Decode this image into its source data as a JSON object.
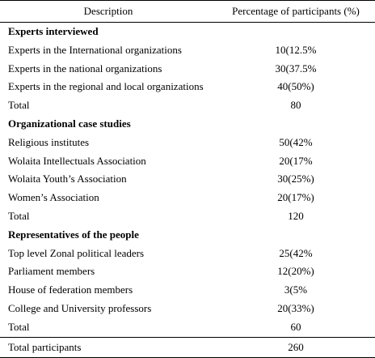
{
  "table": {
    "headers": [
      "Description",
      "Percentage of participants (%)"
    ],
    "sections": [
      {
        "title": "Experts interviewed",
        "rows": [
          {
            "label": "Experts in the International organizations",
            "value": "10(12.5%"
          },
          {
            "label": "Experts in the national organizations",
            "value": "30(37.5%"
          },
          {
            "label": "Experts in the regional and local organizations",
            "value": "40(50%)"
          },
          {
            "label": "Total",
            "value": "80"
          }
        ]
      },
      {
        "title": "Organizational case studies",
        "rows": [
          {
            "label": "Religious institutes",
            "value": "50(42%"
          },
          {
            "label": "Wolaita Intellectuals Association",
            "value": "20(17%"
          },
          {
            "label": "Wolaita Youth’s Association",
            "value": "30(25%)"
          },
          {
            "label": "Women’s Association",
            "value": "20(17%)"
          },
          {
            "label": "Total",
            "value": "120"
          }
        ]
      },
      {
        "title": "Representatives of the people",
        "rows": [
          {
            "label": "Top level Zonal political leaders",
            "value": "25(42%"
          },
          {
            "label": "Parliament members",
            "value": "12(20%)"
          },
          {
            "label": "House of federation members",
            "value": "3(5%"
          },
          {
            "label": "College and University professors",
            "value": "20(33%)"
          },
          {
            "label": "Total",
            "value": "60"
          }
        ]
      }
    ],
    "grand_total": {
      "label": "Total participants",
      "value": "260"
    }
  }
}
